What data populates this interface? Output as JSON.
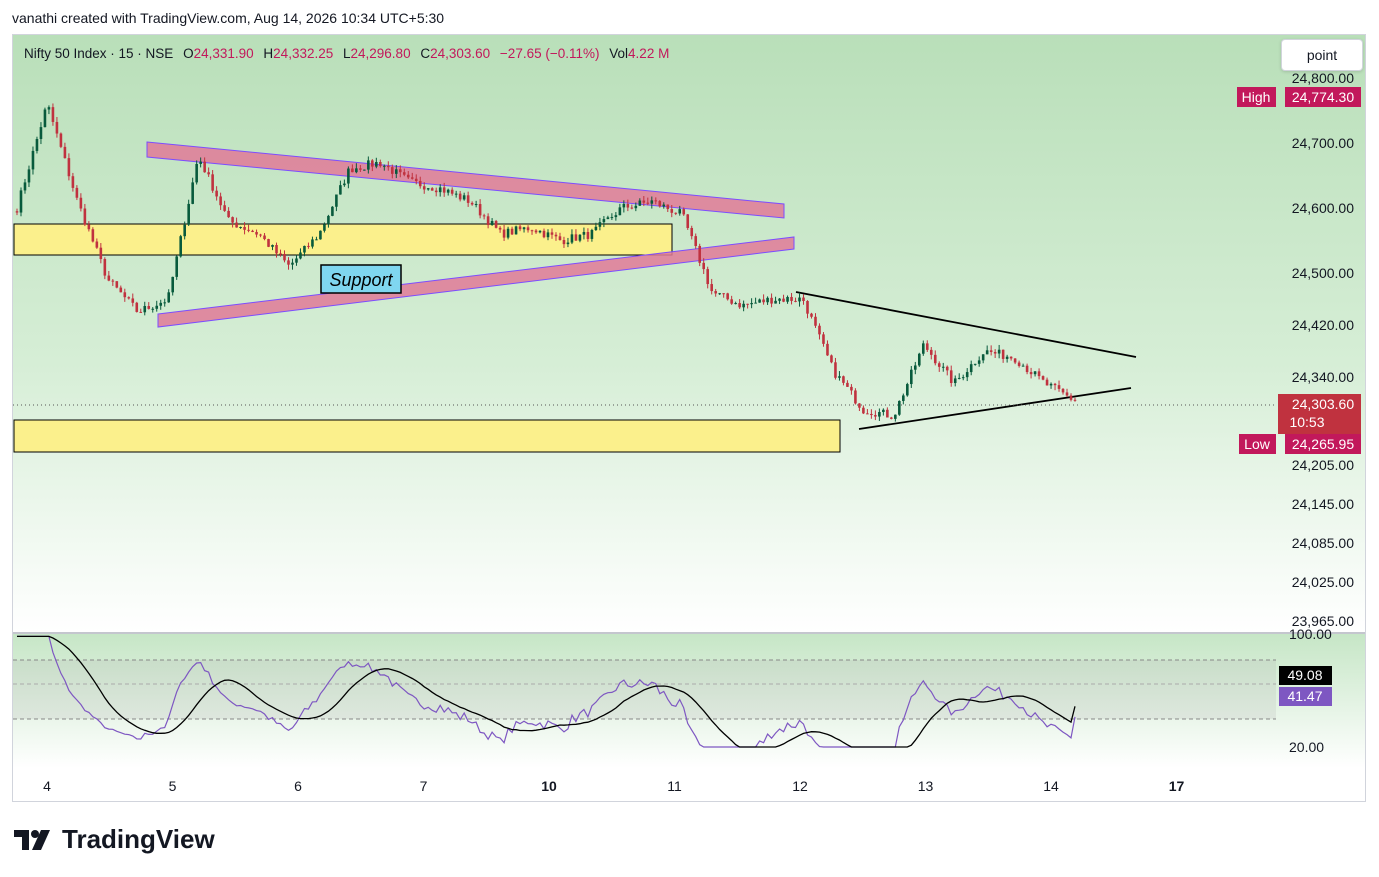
{
  "caption": "vanathi created with TradingView.com, Aug 14, 2026 10:34 UTC+5:30",
  "legend": {
    "symbol": "Nifty 50 Index · 15 · NSE",
    "open_label": "O",
    "open": "24,331.90",
    "high_label": "H",
    "high": "24,332.25",
    "low_label": "L",
    "low": "24,296.80",
    "close_label": "C",
    "close": "24,303.60",
    "change": "−27.65 (−0.11%)",
    "vol_label": "Vol",
    "volume": "4.22 M"
  },
  "scale_mode_button": "point",
  "price_axis": {
    "ticks": [
      {
        "label": "24,800.00",
        "v": 24800
      },
      {
        "label": "24,700.00",
        "v": 24700
      },
      {
        "label": "24,600.00",
        "v": 24600
      },
      {
        "label": "24,500.00",
        "v": 24500
      },
      {
        "label": "24,420.00",
        "v": 24420
      },
      {
        "label": "24,340.00",
        "v": 24340
      },
      {
        "label": "24,205.00",
        "v": 24205
      },
      {
        "label": "24,145.00",
        "v": 24145
      },
      {
        "label": "24,085.00",
        "v": 24085
      },
      {
        "label": "24,025.00",
        "v": 24025
      },
      {
        "label": "23,965.00",
        "v": 23965
      }
    ],
    "high_tag": "High",
    "high_value": "24,774.30",
    "low_tag": "Low",
    "low_value": "24,265.95",
    "last_price": "24,303.60",
    "countdown": "10:53"
  },
  "rsi_axis": {
    "top_label": "100.00",
    "bottom_label": "20.00",
    "ma_value": "49.08",
    "rsi_value": "41.47"
  },
  "time_axis": [
    {
      "label": "4",
      "bold": false
    },
    {
      "label": "5",
      "bold": false
    },
    {
      "label": "6",
      "bold": false
    },
    {
      "label": "7",
      "bold": false
    },
    {
      "label": "10",
      "bold": true
    },
    {
      "label": "11",
      "bold": false
    },
    {
      "label": "12",
      "bold": false
    },
    {
      "label": "13",
      "bold": false
    },
    {
      "label": "14",
      "bold": false
    },
    {
      "label": "17",
      "bold": true
    }
  ],
  "annotation": "Support",
  "logo_text": "TradingView",
  "colors": {
    "up": "#085a3c",
    "down": "#c0323f",
    "channel": "#e07a98",
    "zone": "#fbf08c",
    "rsi": "#7e57c2",
    "rsi_ma": "#000000",
    "accent": "#c2185b"
  },
  "chart_data": {
    "type": "candlestick",
    "instrument": "Nifty 50 Index",
    "timeframe": "15",
    "x": [
      "4",
      "5",
      "6",
      "7",
      "10",
      "11",
      "12",
      "13",
      "14"
    ],
    "close_path": [
      {
        "day": "4",
        "price": 24600
      },
      {
        "day": "4",
        "price": 24760
      },
      {
        "day": "4",
        "price": 24610
      },
      {
        "day": "4",
        "price": 24490
      },
      {
        "day": "4",
        "price": 24440
      },
      {
        "day": "5",
        "price": 24460
      },
      {
        "day": "5",
        "price": 24680
      },
      {
        "day": "5",
        "price": 24580
      },
      {
        "day": "5",
        "price": 24560
      },
      {
        "day": "5",
        "price": 24510
      },
      {
        "day": "6",
        "price": 24560
      },
      {
        "day": "6",
        "price": 24660
      },
      {
        "day": "6",
        "price": 24670
      },
      {
        "day": "6",
        "price": 24640
      },
      {
        "day": "6",
        "price": 24630
      },
      {
        "day": "7",
        "price": 24610
      },
      {
        "day": "7",
        "price": 24560
      },
      {
        "day": "7",
        "price": 24570
      },
      {
        "day": "7",
        "price": 24550
      },
      {
        "day": "10",
        "price": 24560
      },
      {
        "day": "10",
        "price": 24600
      },
      {
        "day": "10",
        "price": 24610
      },
      {
        "day": "10",
        "price": 24590
      },
      {
        "day": "11",
        "price": 24470
      },
      {
        "day": "11",
        "price": 24450
      },
      {
        "day": "11",
        "price": 24460
      },
      {
        "day": "12",
        "price": 24460
      },
      {
        "day": "12",
        "price": 24350
      },
      {
        "day": "12",
        "price": 24290
      },
      {
        "day": "12",
        "price": 24280
      },
      {
        "day": "13",
        "price": 24390
      },
      {
        "day": "13",
        "price": 24330
      },
      {
        "day": "13",
        "price": 24380
      },
      {
        "day": "14",
        "price": 24370
      },
      {
        "day": "14",
        "price": 24330
      },
      {
        "day": "14",
        "price": 24303.6
      }
    ],
    "ylim": [
      23965,
      24800
    ],
    "high": 24774.3,
    "low": 24265.95,
    "last": 24303.6,
    "indicator": {
      "name": "RSI",
      "ylim": [
        20,
        100
      ],
      "rsi_last": 41.47,
      "ma_last": 49.08
    }
  }
}
